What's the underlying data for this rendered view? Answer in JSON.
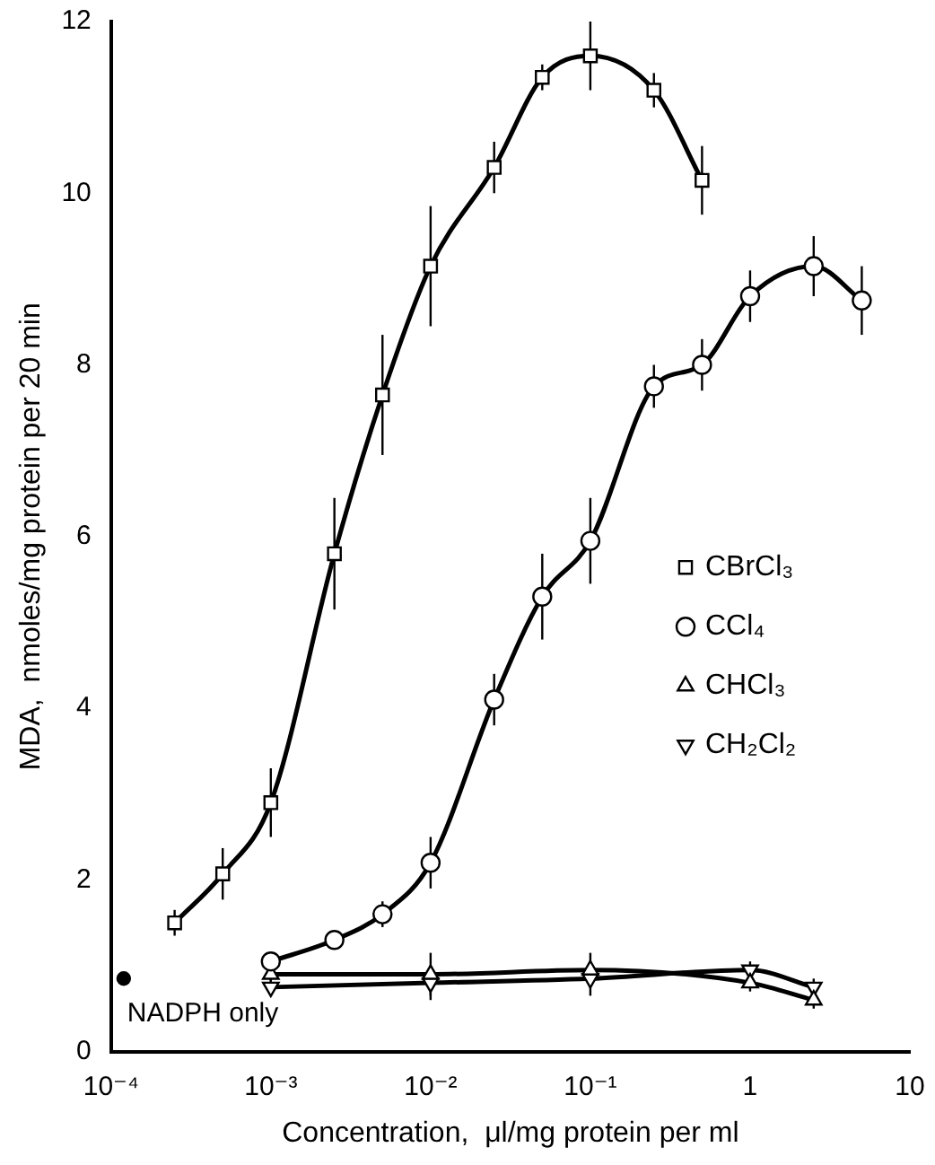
{
  "chart_data": {
    "type": "line",
    "xlabel": "Concentration,  μl/mg protein per ml",
    "ylabel": "MDA,  nmoles/mg protein per 20 min",
    "log": "x",
    "xlim": [
      0.0001,
      10
    ],
    "xticks": [
      {
        "value": 0.0001,
        "label": "10⁻⁴"
      },
      {
        "value": 0.001,
        "label": "10⁻³"
      },
      {
        "value": 0.01,
        "label": "10⁻²"
      },
      {
        "value": 0.1,
        "label": "10⁻¹"
      },
      1,
      10
    ],
    "ylim": [
      0,
      12
    ],
    "yticks": [
      0,
      2,
      4,
      6,
      8,
      10,
      12
    ],
    "grid": false,
    "legend": "right",
    "series": [
      {
        "name": "CBrCl₃",
        "color": "#000000",
        "marker": "square",
        "x": [
          0.00025,
          0.0005,
          0.001,
          0.0025,
          0.005,
          0.01,
          0.025,
          0.05,
          0.1,
          0.25,
          0.5
        ],
        "values": [
          1.5,
          2.07,
          2.9,
          5.8,
          7.65,
          9.15,
          10.3,
          11.35,
          11.6,
          11.2,
          10.15
        ],
        "errors": [
          0.15,
          0.3,
          0.4,
          0.65,
          0.7,
          0.7,
          0.3,
          0.15,
          0.4,
          0.2,
          0.4
        ]
      },
      {
        "name": "CCl₄",
        "color": "#000000",
        "marker": "circle",
        "x": [
          0.001,
          0.0025,
          0.005,
          0.01,
          0.025,
          0.05,
          0.1,
          0.25,
          0.5,
          1,
          2.5,
          5
        ],
        "values": [
          1.05,
          1.3,
          1.6,
          2.2,
          4.1,
          5.3,
          5.95,
          7.75,
          8.0,
          8.8,
          9.15,
          8.75
        ],
        "errors": [
          0.1,
          0.1,
          0.15,
          0.3,
          0.3,
          0.5,
          0.5,
          0.25,
          0.3,
          0.3,
          0.35,
          0.4
        ]
      },
      {
        "name": "CHCl₃",
        "color": "#000000",
        "marker": "triangle",
        "x": [
          0.001,
          0.01,
          0.1,
          1,
          2.5
        ],
        "values": [
          0.9,
          0.9,
          0.95,
          0.8,
          0.6
        ],
        "errors": [
          0.1,
          0.25,
          0.2,
          0.1,
          0.1
        ]
      },
      {
        "name": "CH₂Cl₂",
        "color": "#000000",
        "marker": "triangle-down",
        "x": [
          0.001,
          0.01,
          0.1,
          1,
          2.5
        ],
        "values": [
          0.75,
          0.8,
          0.85,
          0.95,
          0.75
        ],
        "errors": [
          0.1,
          0.2,
          0.2,
          0.1,
          0.1
        ]
      },
      {
        "type": "scatter",
        "color": "#000000",
        "marker": "circle",
        "x": [
          0.00012
        ],
        "values": [
          0.85
        ]
      }
    ],
    "annotations": [
      {
        "text": "NADPH only",
        "x": 0.00012,
        "y": 0.85
      }
    ]
  }
}
